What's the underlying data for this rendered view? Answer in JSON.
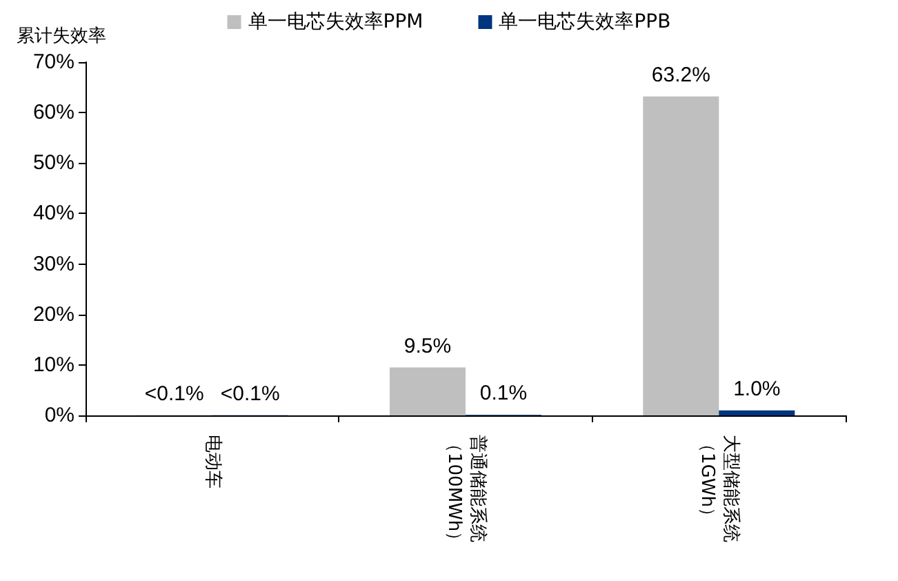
{
  "chart_data": {
    "type": "bar",
    "ylabel": "累计失效率",
    "categories": [
      "电动车",
      "普通储能系统（100MWh）",
      "大型储能系统（1GWh）"
    ],
    "series": [
      {
        "name": "单一电芯失效率PPM",
        "color": "#bfbfbf",
        "values": [
          0.05,
          9.5,
          63.2
        ],
        "value_labels": [
          "<0.1%",
          "9.5%",
          "63.2%"
        ]
      },
      {
        "name": "单一电芯失效率PPB",
        "color": "#003580",
        "values": [
          0.05,
          0.1,
          1.0
        ],
        "value_labels": [
          "<0.1%",
          "0.1%",
          "1.0%"
        ]
      }
    ],
    "ylim": [
      0,
      70
    ],
    "yticks": [
      {
        "value": 0,
        "label": "0%"
      },
      {
        "value": 10,
        "label": "10%"
      },
      {
        "value": 20,
        "label": "20%"
      },
      {
        "value": 30,
        "label": "30%"
      },
      {
        "value": 40,
        "label": "40%"
      },
      {
        "value": 50,
        "label": "50%"
      },
      {
        "value": 60,
        "label": "60%"
      },
      {
        "value": 70,
        "label": "70%"
      }
    ],
    "grid": false,
    "legend": "top"
  }
}
